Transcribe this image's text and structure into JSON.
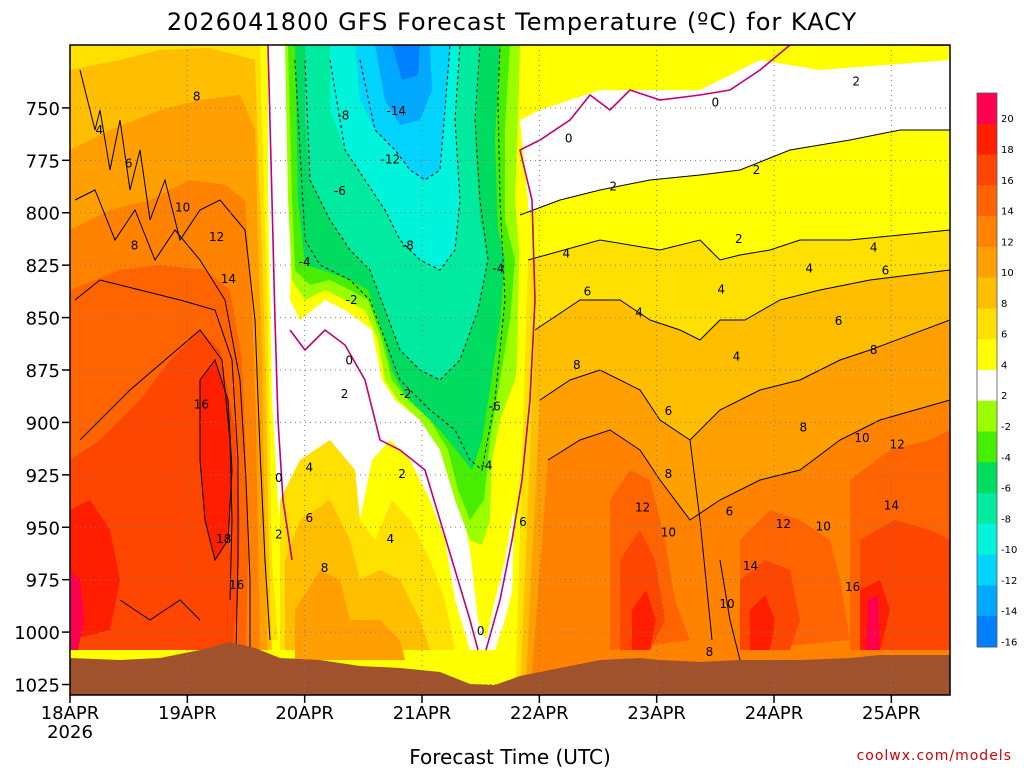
{
  "chart_data": {
    "type": "heatmap",
    "title": "2026041800 GFS Forecast Temperature (ºC) for KACY",
    "xlabel": "Forecast Time (UTC)",
    "ylabel": "",
    "credit": "coolwx.com/models",
    "x_ticks": [
      "18APR",
      "19APR",
      "20APR",
      "21APR",
      "22APR",
      "23APR",
      "24APR",
      "25APR"
    ],
    "x_year": "2026",
    "y_ticks": [
      "750",
      "775",
      "800",
      "825",
      "850",
      "875",
      "900",
      "925",
      "950",
      "975",
      "1000",
      "1025"
    ],
    "y_range_hpa": [
      1030,
      720
    ],
    "x_range_days": [
      0,
      7.5
    ],
    "colorbar": {
      "labels": [
        "20",
        "18",
        "16",
        "14",
        "12",
        "10",
        "8",
        "6",
        "4",
        "2",
        "-2",
        "-4",
        "-6",
        "-8",
        "-10",
        "-12",
        "-14",
        "-16"
      ],
      "colors": [
        "#ff0050",
        "#ff1e00",
        "#ff4600",
        "#ff6400",
        "#ff8200",
        "#ffa000",
        "#ffbe00",
        "#ffe000",
        "#ffff00",
        "#ffffff",
        "#9cff00",
        "#48ee00",
        "#00dc60",
        "#00eba0",
        "#00f4dc",
        "#00d4ff",
        "#00a8ff",
        "#0080ff"
      ]
    },
    "contour_labels": [
      {
        "text": "8",
        "t": 1.08,
        "p": 745
      },
      {
        "text": "4",
        "t": 0.25,
        "p": 761
      },
      {
        "text": "6",
        "t": 0.5,
        "p": 777
      },
      {
        "text": "10",
        "t": 0.96,
        "p": 798
      },
      {
        "text": "8",
        "t": 0.55,
        "p": 816
      },
      {
        "text": "12",
        "t": 1.25,
        "p": 812
      },
      {
        "text": "14",
        "t": 1.35,
        "p": 832
      },
      {
        "text": "16",
        "t": 1.12,
        "p": 892
      },
      {
        "text": "18",
        "t": 1.31,
        "p": 956
      },
      {
        "text": "16",
        "t": 1.42,
        "p": 978
      },
      {
        "text": "-8",
        "t": 2.33,
        "p": 754
      },
      {
        "text": "-14",
        "t": 2.78,
        "p": 752
      },
      {
        "text": "-12",
        "t": 2.73,
        "p": 775
      },
      {
        "text": "-6",
        "t": 2.3,
        "p": 790
      },
      {
        "text": "-8",
        "t": 2.88,
        "p": 816
      },
      {
        "text": "-4",
        "t": 2.0,
        "p": 824
      },
      {
        "text": "-2",
        "t": 2.4,
        "p": 842
      },
      {
        "text": "0",
        "t": 2.38,
        "p": 871
      },
      {
        "text": "2",
        "t": 2.34,
        "p": 887
      },
      {
        "text": "-2",
        "t": 2.86,
        "p": 887
      },
      {
        "text": "-6",
        "t": 3.62,
        "p": 893
      },
      {
        "text": "-4",
        "t": 3.65,
        "p": 827
      },
      {
        "text": "-4",
        "t": 3.55,
        "p": 921
      },
      {
        "text": "0",
        "t": 1.78,
        "p": 927
      },
      {
        "text": "4",
        "t": 2.04,
        "p": 922
      },
      {
        "text": "2",
        "t": 2.83,
        "p": 925
      },
      {
        "text": "6",
        "t": 2.04,
        "p": 946
      },
      {
        "text": "2",
        "t": 1.78,
        "p": 954
      },
      {
        "text": "4",
        "t": 2.73,
        "p": 956
      },
      {
        "text": "8",
        "t": 2.17,
        "p": 970
      },
      {
        "text": "0",
        "t": 3.5,
        "p": 1000
      },
      {
        "text": "6",
        "t": 3.86,
        "p": 948
      },
      {
        "text": "0",
        "t": 4.25,
        "p": 765
      },
      {
        "text": "0",
        "t": 5.5,
        "p": 748
      },
      {
        "text": "2",
        "t": 4.63,
        "p": 788
      },
      {
        "text": "4",
        "t": 4.23,
        "p": 820
      },
      {
        "text": "6",
        "t": 4.41,
        "p": 838
      },
      {
        "text": "4",
        "t": 4.85,
        "p": 848
      },
      {
        "text": "8",
        "t": 4.32,
        "p": 873
      },
      {
        "text": "6",
        "t": 5.1,
        "p": 895
      },
      {
        "text": "8",
        "t": 5.1,
        "p": 925
      },
      {
        "text": "12",
        "t": 4.88,
        "p": 941
      },
      {
        "text": "10",
        "t": 5.1,
        "p": 953
      },
      {
        "text": "6",
        "t": 5.62,
        "p": 943
      },
      {
        "text": "2",
        "t": 5.7,
        "p": 813
      },
      {
        "text": "4",
        "t": 5.55,
        "p": 837
      },
      {
        "text": "4",
        "t": 5.68,
        "p": 869
      },
      {
        "text": "2",
        "t": 5.85,
        "p": 780
      },
      {
        "text": "4",
        "t": 6.3,
        "p": 827
      },
      {
        "text": "6",
        "t": 6.55,
        "p": 852
      },
      {
        "text": "8",
        "t": 6.25,
        "p": 903
      },
      {
        "text": "12",
        "t": 6.08,
        "p": 949
      },
      {
        "text": "14",
        "t": 5.8,
        "p": 969
      },
      {
        "text": "10",
        "t": 5.6,
        "p": 987
      },
      {
        "text": "10",
        "t": 6.42,
        "p": 950
      },
      {
        "text": "8",
        "t": 5.45,
        "p": 1010
      },
      {
        "text": "2",
        "t": 6.7,
        "p": 738
      },
      {
        "text": "4",
        "t": 6.85,
        "p": 817
      },
      {
        "text": "6",
        "t": 6.95,
        "p": 828
      },
      {
        "text": "8",
        "t": 6.85,
        "p": 866
      },
      {
        "text": "10",
        "t": 6.75,
        "p": 908
      },
      {
        "text": "12",
        "t": 7.05,
        "p": 911
      },
      {
        "text": "14",
        "t": 7.0,
        "p": 940
      },
      {
        "text": "16",
        "t": 6.67,
        "p": 979
      }
    ]
  }
}
